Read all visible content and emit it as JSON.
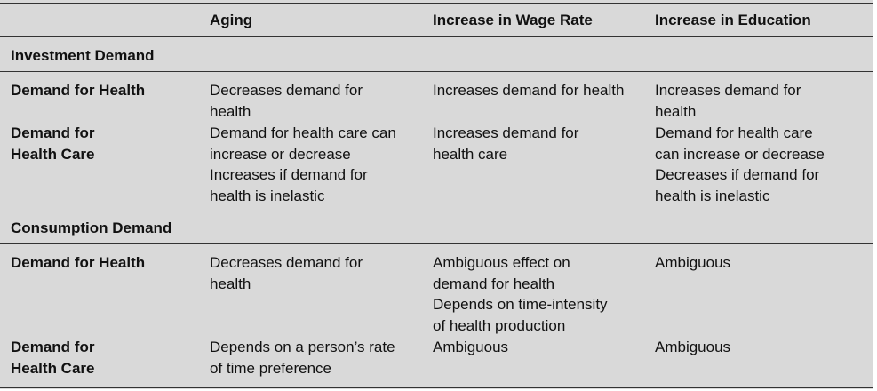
{
  "header": {
    "col_aging": "Aging",
    "col_wage": "Increase in Wage Rate",
    "col_education": "Increase in Education"
  },
  "sections": [
    {
      "title": "Investment Demand",
      "rows": [
        {
          "label": [
            "Demand for Health"
          ],
          "aging": [
            "Decreases demand for",
            "health"
          ],
          "wage": [
            "Increases demand for health"
          ],
          "education": [
            "Increases demand for",
            "health"
          ]
        },
        {
          "label": [
            "Demand for",
            "Health Care"
          ],
          "aging": [
            "Demand for health care can",
            "increase or decrease",
            "Increases if demand for",
            "health is inelastic"
          ],
          "wage": [
            "Increases demand for",
            "health care"
          ],
          "education": [
            "Demand for health care",
            "can increase or decrease",
            "Decreases if demand for",
            "health is inelastic"
          ]
        }
      ]
    },
    {
      "title": "Consumption Demand",
      "rows": [
        {
          "label": [
            "Demand for Health"
          ],
          "aging": [
            "Decreases demand for",
            "health"
          ],
          "wage": [
            "Ambiguous effect on",
            "demand for health",
            "Depends on time-intensity",
            "of health production"
          ],
          "education": [
            "Ambiguous"
          ]
        },
        {
          "label": [
            "Demand for",
            "Health Care"
          ],
          "aging": [
            "Depends on a person’s rate",
            "of time preference"
          ],
          "wage": [
            "Ambiguous"
          ],
          "education": [
            "Ambiguous"
          ]
        }
      ]
    }
  ]
}
